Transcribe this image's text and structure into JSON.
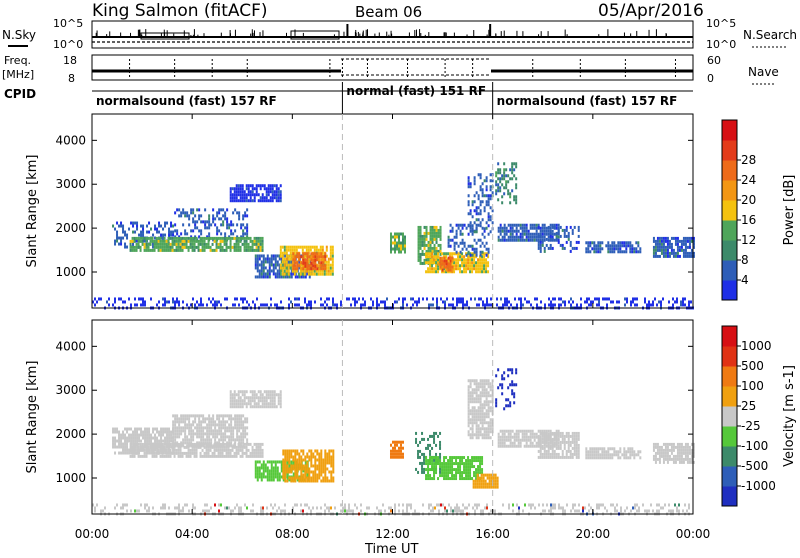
{
  "header": {
    "station": "King Salmon (fitACF)",
    "beam": "Beam 06",
    "date": "05/Apr/2016"
  },
  "sidebar": {
    "nsky_label": "N.Sky",
    "freq_label": "Freq.",
    "freq_unit": "[MHz]",
    "cpid_label": "CPID",
    "nsearch_label": "N.Search",
    "nave_label": "Nave",
    "nsky_ticks": [
      "10^5",
      "10^0"
    ],
    "nsearch_ticks": [
      "10^5",
      "10^0"
    ],
    "freq_ticks": [
      "18",
      "8"
    ],
    "nave_ticks": [
      "60",
      "0"
    ]
  },
  "cpid": {
    "segments": [
      {
        "label": "normalsound (fast) 157 RF",
        "start": 0,
        "end": 10
      },
      {
        "label": "normal (fast) 151 RF",
        "start": 10,
        "end": 16
      },
      {
        "label": "normalsound (fast) 157 RF",
        "start": 16,
        "end": 24
      }
    ]
  },
  "chart_data": [
    {
      "type": "heatmap",
      "name": "power",
      "ylabel": "Slant Range [km]",
      "yticks": [
        1000,
        2000,
        3000,
        4000
      ],
      "ylim": [
        180,
        4600
      ],
      "xlim": [
        0,
        24
      ],
      "colorbar": {
        "label": "Power [dB]",
        "ticks": [
          "4",
          "8",
          "12",
          "16",
          "20",
          "24",
          "28"
        ],
        "colors": [
          "#1f2fe6",
          "#2e5eb8",
          "#3c8a6a",
          "#4fa55a",
          "#f4c20f",
          "#f39613",
          "#ee6b1a",
          "#e33b1a",
          "#d70f14"
        ]
      },
      "patches": [
        {
          "t0": 0.8,
          "t1": 3.2,
          "r0": 1550,
          "r1": 2150,
          "level": 1
        },
        {
          "t0": 3.2,
          "t1": 6.2,
          "r0": 1750,
          "r1": 2450,
          "level": 1
        },
        {
          "t0": 1.5,
          "t1": 6.8,
          "r0": 1500,
          "r1": 1800,
          "level": 3
        },
        {
          "t0": 5.5,
          "t1": 7.5,
          "r0": 2600,
          "r1": 3000,
          "level": 0
        },
        {
          "t0": 6.5,
          "t1": 8.8,
          "r0": 900,
          "r1": 1400,
          "level": 1
        },
        {
          "t0": 7.5,
          "t1": 9.6,
          "r0": 950,
          "r1": 1600,
          "level": 4
        },
        {
          "t0": 8.0,
          "t1": 9.3,
          "r0": 1050,
          "r1": 1450,
          "level": 6
        },
        {
          "t0": 8.4,
          "t1": 8.9,
          "r0": 1150,
          "r1": 1300,
          "level": 7
        },
        {
          "t0": 11.9,
          "t1": 12.5,
          "r0": 1450,
          "r1": 1900,
          "level": 3
        },
        {
          "t0": 13.0,
          "t1": 13.9,
          "r0": 1200,
          "r1": 2050,
          "level": 3
        },
        {
          "t0": 13.3,
          "t1": 15.8,
          "r0": 1000,
          "r1": 1450,
          "level": 4
        },
        {
          "t0": 13.8,
          "t1": 14.4,
          "r0": 1050,
          "r1": 1350,
          "level": 6
        },
        {
          "t0": 14.2,
          "t1": 15.8,
          "r0": 1400,
          "r1": 2100,
          "level": 1
        },
        {
          "t0": 15.0,
          "t1": 16.0,
          "r0": 1950,
          "r1": 3250,
          "level": 1
        },
        {
          "t0": 16.1,
          "t1": 16.9,
          "r0": 2550,
          "r1": 3500,
          "level": 2
        },
        {
          "t0": 16.2,
          "t1": 18.6,
          "r0": 1750,
          "r1": 2100,
          "level": 1
        },
        {
          "t0": 17.8,
          "t1": 19.4,
          "r0": 1450,
          "r1": 2050,
          "level": 1
        },
        {
          "t0": 19.7,
          "t1": 21.9,
          "r0": 1450,
          "r1": 1700,
          "level": 1
        },
        {
          "t0": 22.4,
          "t1": 24.0,
          "r0": 1350,
          "r1": 1800,
          "level": 1
        },
        {
          "t0": 0.0,
          "t1": 24.0,
          "r0": 180,
          "r1": 420,
          "level": 0
        }
      ]
    },
    {
      "type": "heatmap",
      "name": "velocity",
      "ylabel": "Slant Range [km]",
      "yticks": [
        1000,
        2000,
        3000,
        4000
      ],
      "ylim": [
        180,
        4600
      ],
      "xlim": [
        0,
        24
      ],
      "colorbar": {
        "label": "Velocity [m s-1]",
        "ticks": [
          "1000",
          "500",
          "100",
          "25",
          "-25",
          "-100",
          "-500",
          "-1000"
        ],
        "colors": [
          "#1f2fc0",
          "#2e5eb8",
          "#3c8a6a",
          "#55c83a",
          "#c8c8c8",
          "#f0a010",
          "#ef7a12",
          "#e03214",
          "#d70f14"
        ]
      },
      "patches": [
        {
          "t0": 0.8,
          "t1": 3.2,
          "r0": 1550,
          "r1": 2150,
          "level": 4
        },
        {
          "t0": 3.2,
          "t1": 6.2,
          "r0": 1750,
          "r1": 2450,
          "level": 4
        },
        {
          "t0": 1.5,
          "t1": 6.8,
          "r0": 1500,
          "r1": 1800,
          "level": 4
        },
        {
          "t0": 5.5,
          "t1": 7.5,
          "r0": 2600,
          "r1": 3000,
          "level": 4
        },
        {
          "t0": 6.5,
          "t1": 8.6,
          "r0": 950,
          "r1": 1400,
          "level": 3
        },
        {
          "t0": 7.6,
          "t1": 9.6,
          "r0": 950,
          "r1": 1650,
          "level": 5
        },
        {
          "t0": 11.9,
          "t1": 12.4,
          "r0": 1450,
          "r1": 1850,
          "level": 6
        },
        {
          "t0": 12.9,
          "t1": 13.9,
          "r0": 1150,
          "r1": 2050,
          "level": 2
        },
        {
          "t0": 13.3,
          "t1": 15.6,
          "r0": 1000,
          "r1": 1500,
          "level": 3
        },
        {
          "t0": 15.2,
          "t1": 16.2,
          "r0": 800,
          "r1": 1100,
          "level": 5
        },
        {
          "t0": 15.0,
          "t1": 16.0,
          "r0": 1950,
          "r1": 3250,
          "level": 4
        },
        {
          "t0": 16.1,
          "t1": 16.9,
          "r0": 2600,
          "r1": 3500,
          "level": 0
        },
        {
          "t0": 16.2,
          "t1": 18.6,
          "r0": 1750,
          "r1": 2100,
          "level": 4
        },
        {
          "t0": 17.8,
          "t1": 19.4,
          "r0": 1450,
          "r1": 2050,
          "level": 4
        },
        {
          "t0": 19.7,
          "t1": 21.9,
          "r0": 1450,
          "r1": 1700,
          "level": 4
        },
        {
          "t0": 22.4,
          "t1": 24.0,
          "r0": 1350,
          "r1": 1800,
          "level": 4
        },
        {
          "t0": 0.0,
          "t1": 24.0,
          "r0": 180,
          "r1": 420,
          "level": 4
        }
      ]
    }
  ],
  "time_axis": {
    "label": "Time UT",
    "ticks": [
      "00:00",
      "04:00",
      "08:00",
      "12:00",
      "16:00",
      "20:00",
      "00:00"
    ],
    "tick_hours": [
      0,
      4,
      8,
      12,
      16,
      20,
      24
    ],
    "boundaries": [
      10,
      16
    ]
  }
}
